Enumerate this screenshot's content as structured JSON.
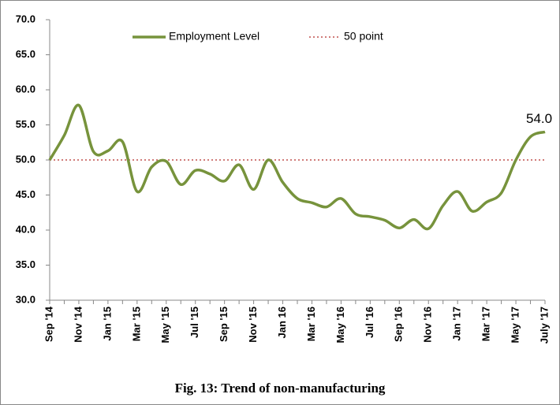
{
  "chart_data": {
    "type": "line",
    "caption": "Fig. 13: Trend of non-manufacturing",
    "categories": [
      "Sep '14",
      null,
      "Nov '14",
      null,
      "Jan '15",
      null,
      "Mar '15",
      null,
      "May '15",
      null,
      "Jul '15",
      null,
      "Sep '15",
      null,
      "Nov '15",
      null,
      "Jan 16",
      null,
      "Mar '16",
      null,
      "May '16",
      null,
      "Jul '16",
      null,
      "Sep '16",
      null,
      "Nov '16",
      null,
      "Jan '17",
      null,
      "Mar '17",
      null,
      "May '17",
      null,
      "July '17"
    ],
    "series": [
      {
        "name": "Employment Level",
        "color": "#77933c",
        "values": [
          50.0,
          53.5,
          57.8,
          51.2,
          51.3,
          52.6,
          45.5,
          49.0,
          49.8,
          46.5,
          48.5,
          48.0,
          47.0,
          49.3,
          45.8,
          50.0,
          46.8,
          44.5,
          43.9,
          43.3,
          44.5,
          42.3,
          41.9,
          41.4,
          40.3,
          41.5,
          40.2,
          43.5,
          45.5,
          42.7,
          44.0,
          45.3,
          50.0,
          53.3,
          54.0
        ],
        "value_labels": [
          null,
          null,
          null,
          null,
          null,
          null,
          null,
          null,
          null,
          null,
          null,
          null,
          null,
          null,
          null,
          null,
          null,
          null,
          null,
          null,
          null,
          null,
          null,
          null,
          null,
          null,
          null,
          null,
          null,
          null,
          null,
          null,
          null,
          null,
          "54.0"
        ]
      }
    ],
    "reference_lines": [
      {
        "name": "50 point",
        "value": 50,
        "color": "#c0504d"
      }
    ],
    "ylim": [
      30,
      70
    ],
    "yticks": [
      {
        "value": 30,
        "label": "30.0"
      },
      {
        "value": 35,
        "label": "35.0"
      },
      {
        "value": 40,
        "label": "40.0"
      },
      {
        "value": 45,
        "label": "45.0"
      },
      {
        "value": 50,
        "label": "50.0"
      },
      {
        "value": 55,
        "label": "55.0"
      },
      {
        "value": 60,
        "label": "60.0"
      },
      {
        "value": 65,
        "label": "65.0"
      },
      {
        "value": 70,
        "label": "70.0"
      }
    ],
    "grid": false
  }
}
